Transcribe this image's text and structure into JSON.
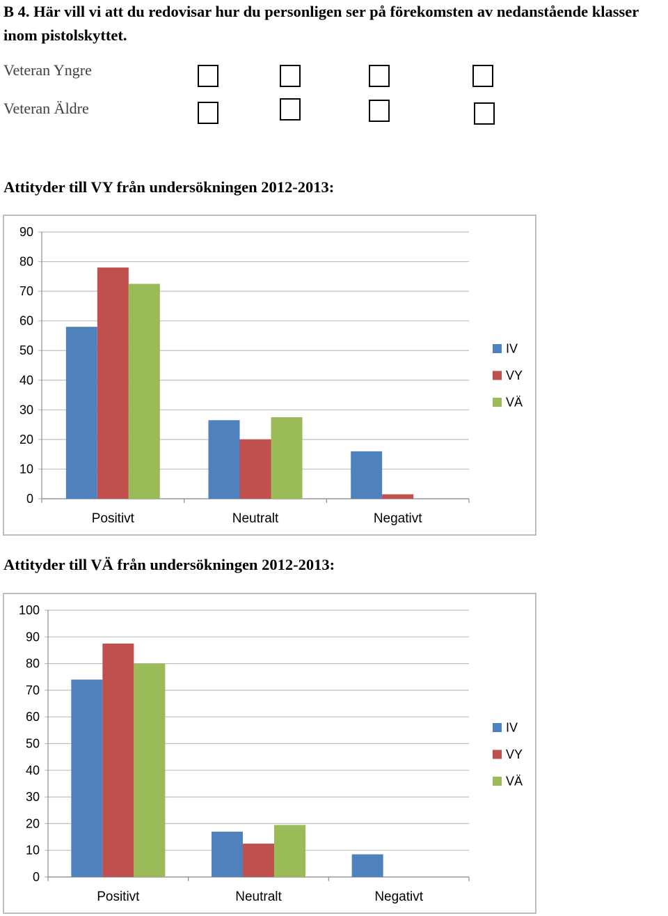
{
  "question": {
    "number": "B 4.",
    "text": "Här vill vi att du redovisar hur du personligen ser på förekomsten av nedanstående klasser inom pistolskyttet."
  },
  "rows": [
    {
      "label": "Veteran Yngre"
    },
    {
      "label": "Veteran Äldre"
    }
  ],
  "colors": {
    "IV": "#4f81bd",
    "VY": "#c0504d",
    "VA": "#9bbb59"
  },
  "charts": [
    {
      "title": "Attityder till VY från undersökningen 2012-2013:",
      "chart_data": {
        "type": "bar",
        "categories": [
          "Positivt",
          "Neutralt",
          "Negativt"
        ],
        "series": [
          {
            "name": "IV",
            "values": [
              58,
              26.5,
              16
            ]
          },
          {
            "name": "VY",
            "values": [
              78,
              20,
              1.5
            ]
          },
          {
            "name": "VÄ",
            "values": [
              72.5,
              27.5,
              0
            ]
          }
        ],
        "ylim": [
          0,
          90
        ],
        "yticks": [
          "0",
          "10",
          "20",
          "30",
          "40",
          "50",
          "60",
          "70",
          "80",
          "90"
        ],
        "grid": true,
        "legend": "right"
      }
    },
    {
      "title": "Attityder till VÄ från undersökningen 2012-2013:",
      "chart_data": {
        "type": "bar",
        "categories": [
          "Positivt",
          "Neutralt",
          "Negativt"
        ],
        "series": [
          {
            "name": "IV",
            "values": [
              74,
              17,
              8.5
            ]
          },
          {
            "name": "VY",
            "values": [
              87.5,
              12.5,
              0
            ]
          },
          {
            "name": "VÄ",
            "values": [
              80,
              19.5,
              0
            ]
          }
        ],
        "ylim": [
          0,
          100
        ],
        "yticks": [
          "0",
          "10",
          "20",
          "30",
          "40",
          "50",
          "60",
          "70",
          "80",
          "90",
          "100"
        ],
        "grid": true,
        "legend": "right"
      }
    }
  ]
}
